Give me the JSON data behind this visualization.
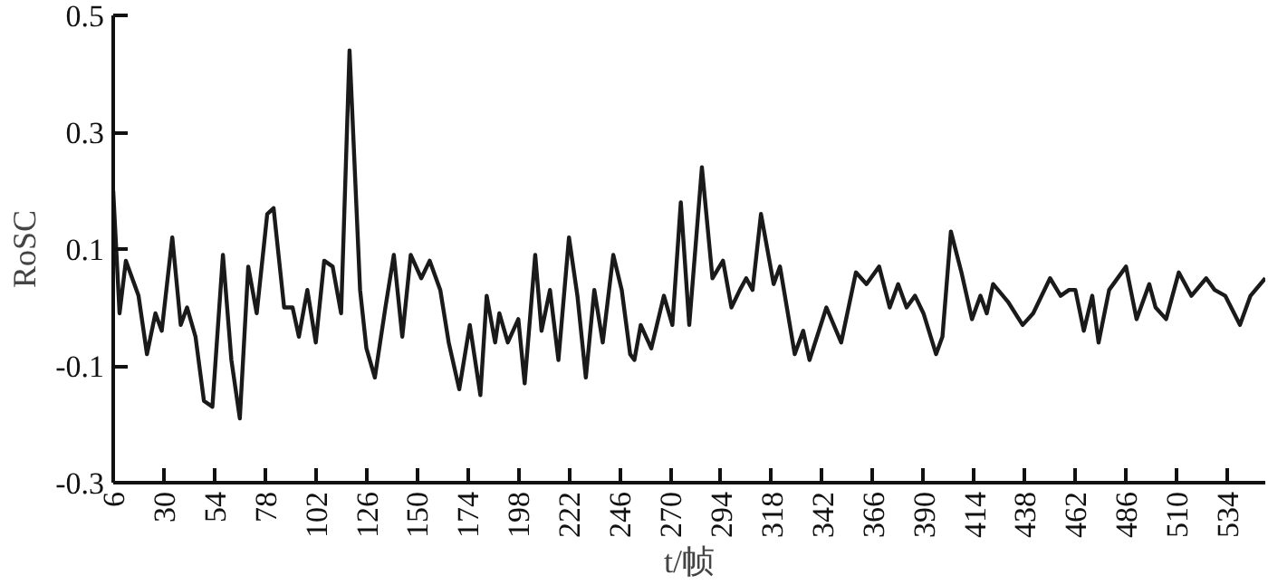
{
  "chart_data": {
    "type": "line",
    "xlabel": "t/帧",
    "ylabel": "RoSC",
    "x": [
      6,
      9,
      12,
      18,
      22,
      26,
      29,
      34,
      38,
      41,
      45,
      49,
      53,
      58,
      62,
      66,
      70,
      74,
      79,
      82,
      87,
      91,
      94,
      98,
      102,
      106,
      110,
      114,
      118,
      123,
      126,
      130,
      135,
      139,
      143,
      147,
      152,
      156,
      161,
      165,
      170,
      175,
      180,
      183,
      187,
      189,
      193,
      198,
      201,
      206,
      209,
      213,
      217,
      222,
      226,
      230,
      234,
      238,
      243,
      247,
      251,
      253,
      256,
      261,
      267,
      271,
      275,
      279,
      285,
      290,
      295,
      299,
      303,
      306,
      309,
      313,
      319,
      322,
      329,
      333,
      336,
      344,
      351,
      358,
      363,
      369,
      374,
      378,
      382,
      386,
      390,
      396,
      399,
      403,
      408,
      413,
      417,
      420,
      423,
      430,
      437,
      442,
      450,
      455,
      459,
      462,
      466,
      470,
      473,
      478,
      486,
      491,
      497,
      500,
      505,
      511,
      517,
      524,
      528,
      533,
      540,
      545,
      552
    ],
    "values": [
      0.2,
      -0.01,
      0.08,
      0.02,
      -0.08,
      -0.01,
      -0.04,
      0.12,
      -0.03,
      0.0,
      -0.05,
      -0.16,
      -0.17,
      0.09,
      -0.09,
      -0.19,
      0.07,
      -0.01,
      0.16,
      0.17,
      0.0,
      0.0,
      -0.05,
      0.03,
      -0.06,
      0.08,
      0.07,
      -0.01,
      0.44,
      0.03,
      -0.07,
      -0.12,
      0.0,
      0.09,
      -0.05,
      0.09,
      0.05,
      0.08,
      0.03,
      -0.06,
      -0.14,
      -0.03,
      -0.15,
      0.02,
      -0.06,
      -0.01,
      -0.06,
      -0.02,
      -0.13,
      0.09,
      -0.04,
      0.03,
      -0.09,
      0.12,
      0.02,
      -0.12,
      0.03,
      -0.06,
      0.09,
      0.03,
      -0.08,
      -0.09,
      -0.03,
      -0.07,
      0.02,
      -0.03,
      0.18,
      -0.03,
      0.24,
      0.05,
      0.08,
      0.0,
      0.03,
      0.05,
      0.03,
      0.16,
      0.04,
      0.07,
      -0.08,
      -0.04,
      -0.09,
      0.0,
      -0.06,
      0.06,
      0.04,
      0.07,
      0.0,
      0.04,
      0.0,
      0.02,
      -0.01,
      -0.08,
      -0.05,
      0.13,
      0.06,
      -0.02,
      0.02,
      -0.01,
      0.04,
      0.01,
      -0.03,
      -0.01,
      0.05,
      0.02,
      0.03,
      0.03,
      -0.04,
      0.02,
      -0.06,
      0.03,
      0.07,
      -0.02,
      0.04,
      0.0,
      -0.02,
      0.06,
      0.02,
      0.05,
      0.03,
      0.02,
      -0.03,
      0.02,
      0.05
    ],
    "color": "#1a1a1a",
    "xlim": [
      6,
      552
    ],
    "ylim": [
      -0.3,
      0.5
    ],
    "xticks": [
      6,
      30,
      54,
      78,
      102,
      126,
      150,
      174,
      198,
      222,
      246,
      270,
      294,
      318,
      342,
      366,
      390,
      414,
      438,
      462,
      486,
      510,
      534
    ],
    "yticks": [
      {
        "value": 0.5,
        "label": "0.5"
      },
      {
        "value": 0.3,
        "label": "0.3"
      },
      {
        "value": 0.1,
        "label": "0.1"
      },
      {
        "value": -0.1,
        "label": "-0.1"
      },
      {
        "value": -0.3,
        "label": "-0.3"
      }
    ]
  }
}
